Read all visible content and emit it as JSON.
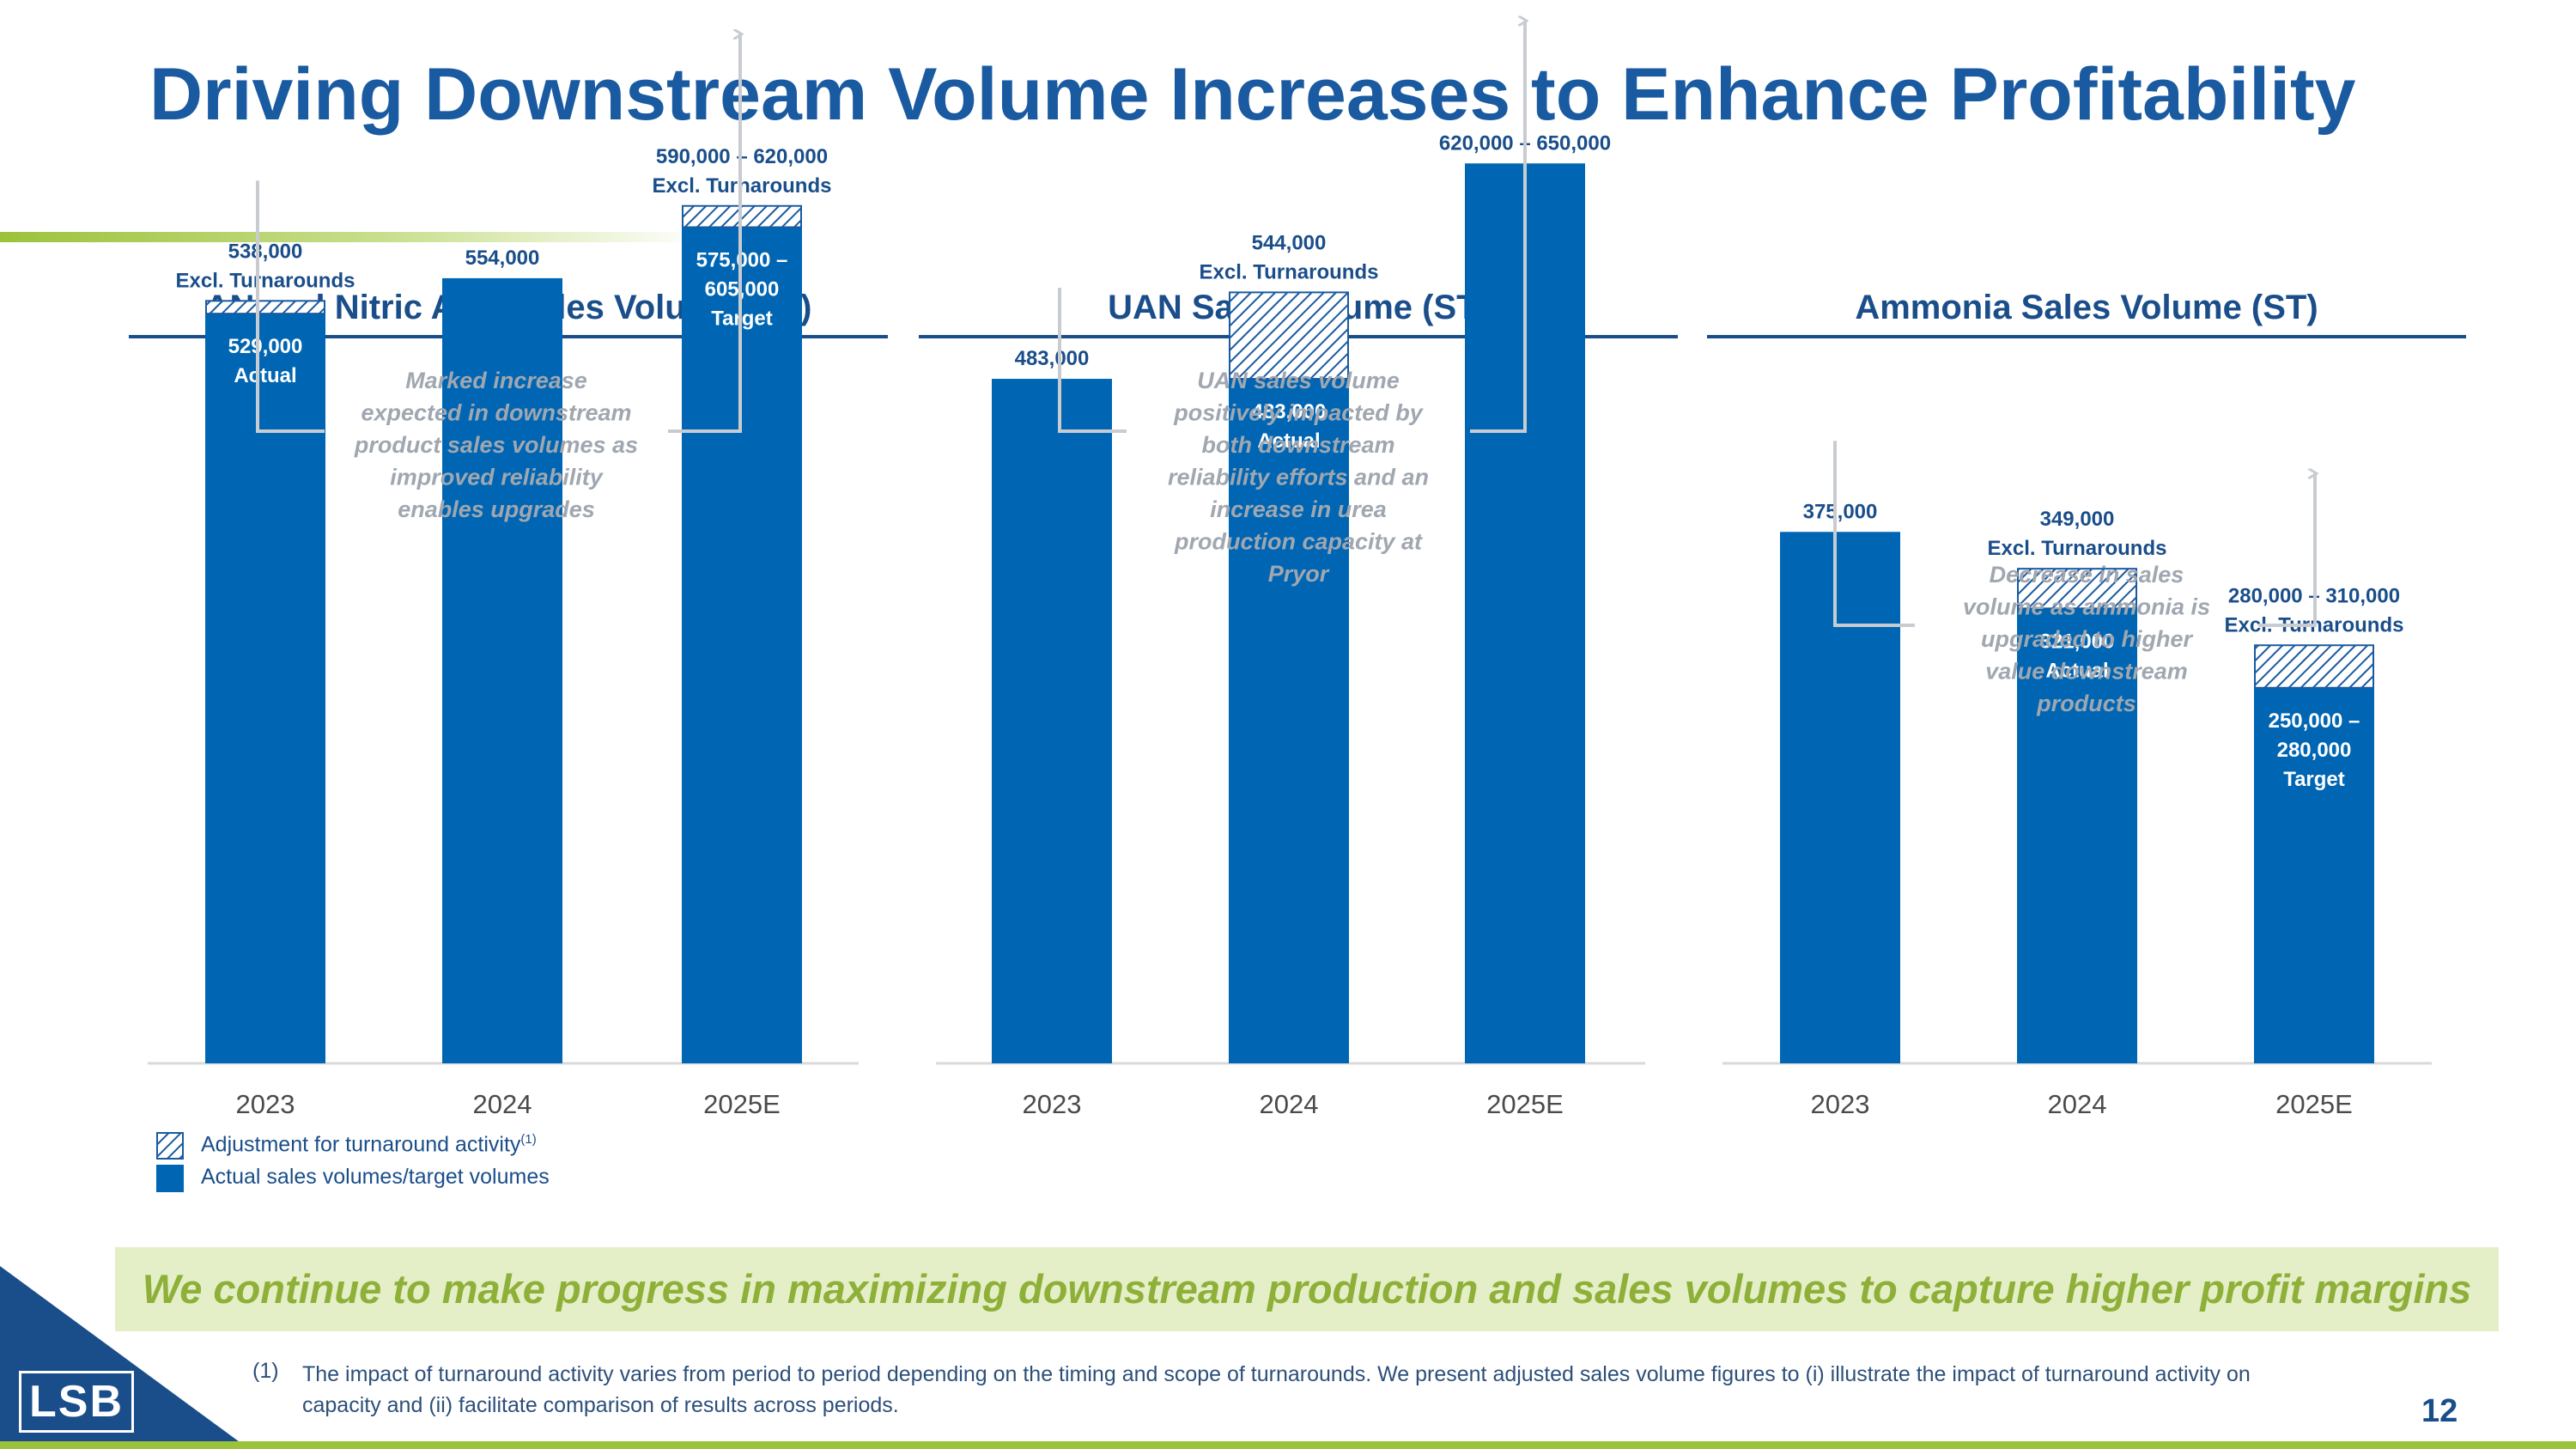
{
  "page": {
    "title": "Driving Downstream Volume Increases to Enhance Profitability",
    "page_number": "12"
  },
  "legend": {
    "hatched_label": "Adjustment for turnaround activity",
    "hatched_superscript": "(1)",
    "solid_label": "Actual sales volumes/target volumes"
  },
  "banner": {
    "text": "We continue to make progress in maximizing downstream production and sales volumes to capture higher profit margins"
  },
  "footnote": {
    "number": "(1)",
    "text": "The impact of turnaround activity varies from period to period depending on the timing and scope of turnarounds. We present adjusted sales volume figures to (i) illustrate the impact of turnaround activity on capacity and (ii) facilitate comparison of results across periods."
  },
  "logo": {
    "text": "LSB"
  },
  "colors": {
    "bar": "#0066b3",
    "title": "#1a5aa0",
    "accent_green": "#9cc23b",
    "note": "#a0a7b0"
  },
  "chart_data": [
    {
      "type": "bar",
      "title": "AN and Nitric Acid Sales Volume (ST)",
      "categories": [
        "2023",
        "2024",
        "2025E"
      ],
      "series": [
        {
          "name": "Actual sales volumes/target volumes",
          "values": [
            529000,
            554000,
            590000
          ]
        },
        {
          "name": "Adjustment for turnaround activity",
          "values": [
            9000,
            0,
            15000
          ]
        }
      ],
      "labels": [
        {
          "top": [
            "538,000",
            "Excl. Turnarounds"
          ],
          "inner": [
            "529,000",
            "Actual"
          ]
        },
        {
          "top": [
            "554,000"
          ],
          "inner": []
        },
        {
          "top": [
            "590,000 – 620,000",
            "Excl. Turnarounds"
          ],
          "inner": [
            "575,000 –",
            "605,000",
            "Target"
          ]
        }
      ],
      "note": [
        "Marked increase",
        "expected in downstream",
        "product sales volumes as",
        "improved reliability",
        "enables upgrades"
      ],
      "ylim": [
        0,
        680000
      ]
    },
    {
      "type": "bar",
      "title": "UAN Sales Volume (ST)",
      "categories": [
        "2023",
        "2024",
        "2025E"
      ],
      "series": [
        {
          "name": "Actual sales volumes/target volumes",
          "values": [
            483000,
            483000,
            635000
          ]
        },
        {
          "name": "Adjustment for turnaround activity",
          "values": [
            0,
            61000,
            0
          ]
        }
      ],
      "labels": [
        {
          "top": [
            "483,000"
          ],
          "inner": []
        },
        {
          "top": [
            "544,000",
            "Excl. Turnarounds"
          ],
          "inner": [
            "483,000",
            "Actual"
          ]
        },
        {
          "top": [
            "620,000 – 650,000"
          ],
          "inner": []
        }
      ],
      "note": [
        "UAN sales volume",
        "positively impacted by",
        "both downstream",
        "reliability efforts and an",
        "increase in urea",
        "production capacity at",
        "Pryor"
      ],
      "ylim": [
        0,
        680000
      ]
    },
    {
      "type": "bar",
      "title": "Ammonia Sales Volume (ST)",
      "categories": [
        "2023",
        "2024",
        "2025E"
      ],
      "series": [
        {
          "name": "Actual sales volumes/target volumes",
          "values": [
            375000,
            321000,
            265000
          ]
        },
        {
          "name": "Adjustment for turnaround activity",
          "values": [
            0,
            28000,
            30000
          ]
        }
      ],
      "labels": [
        {
          "top": [
            "375,000"
          ],
          "inner": []
        },
        {
          "top": [
            "349,000",
            "Excl. Turnarounds"
          ],
          "inner": [
            "321,000",
            "Actual"
          ]
        },
        {
          "top": [
            "280,000 – 310,000",
            "Excl. Turnarounds"
          ],
          "inner": [
            "250,000 –",
            "280,000",
            "Target"
          ]
        }
      ],
      "note": [
        "Decrease in sales",
        "volume as ammonia is",
        "upgraded to higher",
        "value downstream",
        "products"
      ],
      "ylim": [
        0,
        680000
      ]
    }
  ]
}
